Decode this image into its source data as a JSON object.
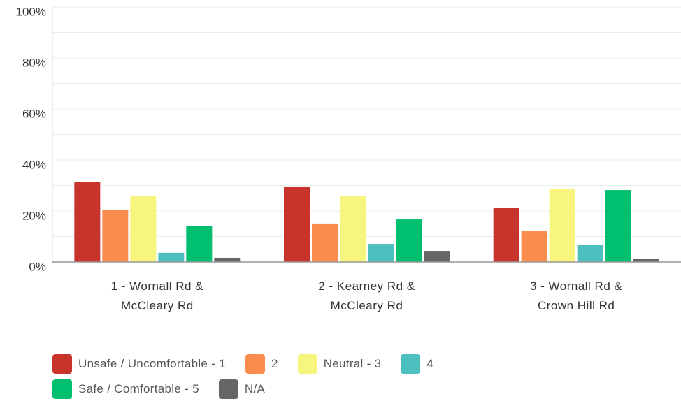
{
  "chart_data": {
    "type": "bar",
    "categories": [
      "1 - Wornall Rd & McCleary Rd",
      "2 - Kearney Rd & McCleary Rd",
      "3 - Wornall Rd & Crown Hill Rd"
    ],
    "series": [
      {
        "name": "Unsafe / Uncomfortable - 1",
        "color": "#c8332c",
        "values": [
          31.5,
          29.6,
          21.1
        ]
      },
      {
        "name": "2",
        "color": "#fb8c4c",
        "values": [
          20.5,
          15.1,
          12.1
        ]
      },
      {
        "name": "Neutral - 3",
        "color": "#f8f57f",
        "values": [
          26,
          25.8,
          28.5
        ]
      },
      {
        "name": "4",
        "color": "#4cbfbf",
        "values": [
          3.6,
          7.1,
          6.6
        ]
      },
      {
        "name": "Safe / Comfortable - 5",
        "color": "#00bf6f",
        "values": [
          14.2,
          16.7,
          28.2
        ]
      },
      {
        "name": "N/A",
        "color": "#666666",
        "values": [
          1.6,
          4.1,
          1.1
        ]
      }
    ],
    "ylim": [
      0,
      100
    ],
    "yticks": [
      {
        "value": 0,
        "label": "0%"
      },
      {
        "value": 20,
        "label": "20%"
      },
      {
        "value": 40,
        "label": "40%"
      },
      {
        "value": 60,
        "label": "60%"
      },
      {
        "value": 80,
        "label": "80%"
      },
      {
        "value": 100,
        "label": "100%"
      }
    ],
    "grid": true
  }
}
